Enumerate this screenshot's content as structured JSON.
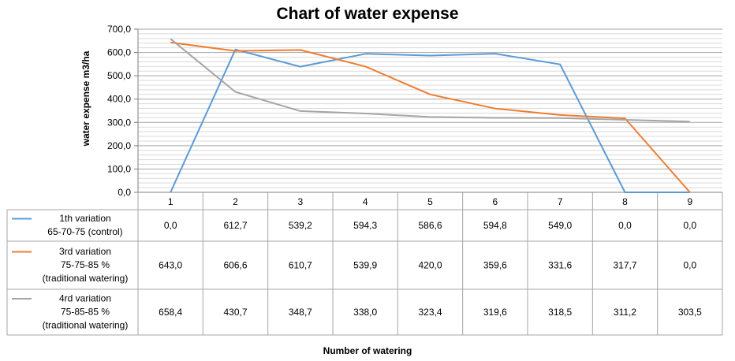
{
  "chart_data": {
    "type": "line",
    "title": "Chart of water expense",
    "xlabel": "Number of watering",
    "ylabel": "water expense m3/ha",
    "categories": [
      "1",
      "2",
      "3",
      "4",
      "5",
      "6",
      "7",
      "8",
      "9"
    ],
    "ylim": [
      0,
      700
    ],
    "yticks": [
      "0,0",
      "100,0",
      "200,0",
      "300,0",
      "400,0",
      "500,0",
      "600,0",
      "700,0"
    ],
    "grid": true,
    "legend": "data-table-left",
    "series": [
      {
        "name_lines": [
          "1th variation",
          "65-70-75 (control)"
        ],
        "color": "#5b9bd5",
        "values": [
          0.0,
          612.7,
          539.2,
          594.3,
          586.6,
          594.8,
          549.0,
          0.0,
          0.0
        ],
        "labels": [
          "0,0",
          "612,7",
          "539,2",
          "594,3",
          "586,6",
          "594,8",
          "549,0",
          "0,0",
          "0,0"
        ]
      },
      {
        "name_lines": [
          "3rd  variation",
          "75-75-85 %",
          "(traditional watering)"
        ],
        "color": "#ed7d31",
        "values": [
          643.0,
          606.6,
          610.7,
          539.9,
          420.0,
          359.6,
          331.6,
          317.7,
          0.0
        ],
        "labels": [
          "643,0",
          "606,6",
          "610,7",
          "539,9",
          "420,0",
          "359,6",
          "331,6",
          "317,7",
          "0,0"
        ]
      },
      {
        "name_lines": [
          "4rd variation",
          "75-85-85 %",
          "(traditional watering)"
        ],
        "color": "#a5a5a5",
        "values": [
          658.4,
          430.7,
          348.7,
          338.0,
          323.4,
          319.6,
          318.5,
          311.2,
          303.5
        ],
        "labels": [
          "658,4",
          "430,7",
          "348,7",
          "338,0",
          "323,4",
          "319,6",
          "318,5",
          "311,2",
          "303,5"
        ]
      }
    ]
  }
}
